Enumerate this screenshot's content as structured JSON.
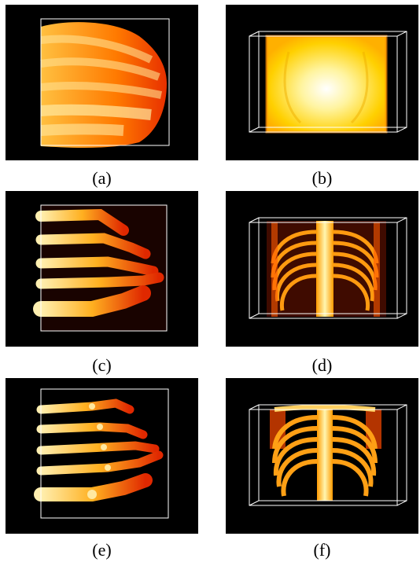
{
  "figure": {
    "panels": [
      {
        "id": "a",
        "caption": "(a)",
        "subject": "foot",
        "rendering": "volume render, dense soft tissue"
      },
      {
        "id": "b",
        "caption": "(b)",
        "subject": "chest",
        "rendering": "volume render, dense soft tissue"
      },
      {
        "id": "c",
        "caption": "(c)",
        "subject": "foot",
        "rendering": "volume render, bones partially visible"
      },
      {
        "id": "d",
        "caption": "(d)",
        "subject": "chest",
        "rendering": "volume render, ribcage partially visible"
      },
      {
        "id": "e",
        "caption": "(e)",
        "subject": "foot",
        "rendering": "volume render, bones clearly visible"
      },
      {
        "id": "f",
        "caption": "(f)",
        "subject": "chest",
        "rendering": "volume render, ribcage clearly visible"
      }
    ],
    "colors": {
      "background": "#000000",
      "bounding_box": "#ffffff",
      "hot_low": "#cc1a00",
      "hot_mid": "#ff8c00",
      "hot_high": "#ffffc8"
    }
  }
}
